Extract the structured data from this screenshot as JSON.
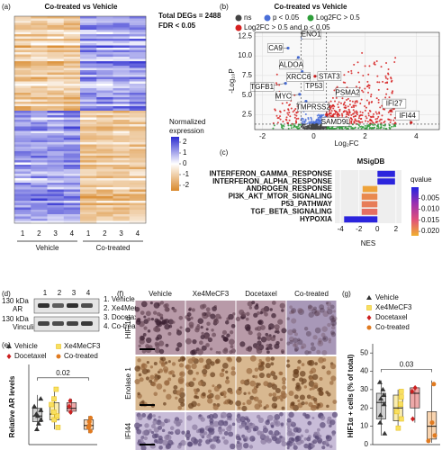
{
  "panels": {
    "a": {
      "label": "(a)",
      "title": "Co-treated vs Vehicle",
      "total_degs": "Total DEGs = 2488",
      "fdr": "FDR < 0.05",
      "colorbar_title": [
        "Normalized",
        "expression"
      ],
      "colorbar_lim": [
        -2.5,
        2.5
      ],
      "colorbar_ticks": [
        2,
        1,
        0,
        -1,
        -2
      ],
      "samples": [
        "1",
        "2",
        "3",
        "4",
        "1",
        "2",
        "3",
        "4"
      ],
      "groups": [
        "Vehicle",
        "Co-treated"
      ]
    },
    "b": {
      "label": "(b)",
      "title": "Co-treated vs Vehicle",
      "legend": [
        {
          "name": "ns",
          "color": "#444444"
        },
        {
          "name": "p < 0.05",
          "color": "#4a6fd8"
        },
        {
          "name": "Log2FC > 0.5",
          "color": "#2e9e3a"
        },
        {
          "name": "Log2FC > 0.5 and p < 0.05",
          "color": "#d62020"
        }
      ],
      "xlabel": "Log₂FC",
      "ylabel": "-Log₁₀P",
      "xlim": [
        -2.3,
        4.9
      ],
      "ylim": [
        0.6,
        13.0
      ],
      "xticks": [
        -2,
        0,
        2,
        4
      ],
      "yticks": [
        2.5,
        {
          "value": 5,
          "label": "5.0"
        },
        7.5,
        {
          "value": 10,
          "label": "10.0"
        },
        12.5
      ],
      "thresholds": {
        "x": [
          -0.5,
          0.5
        ],
        "y": 1.3
      },
      "genes": [
        {
          "name": "ENO1",
          "x": -0.45,
          "y": 12.3
        },
        {
          "name": "CA9",
          "x": -1.0,
          "y": 11.0
        },
        {
          "name": "ALDOA",
          "x": -0.6,
          "y": 9.8
        },
        {
          "name": "XRCC6",
          "x": -0.45,
          "y": 8.0
        },
        {
          "name": "STAT3",
          "x": 0.05,
          "y": 7.4
        },
        {
          "name": "TGFB1",
          "x": -1.1,
          "y": 6.5
        },
        {
          "name": "TP53",
          "x": -0.2,
          "y": 6.4
        },
        {
          "name": "MYC",
          "x": -0.55,
          "y": 5.1
        },
        {
          "name": "TMPRSS2",
          "x": -0.3,
          "y": 4.2
        },
        {
          "name": "PSMA2",
          "x": 0.9,
          "y": 5.8
        },
        {
          "name": "SAMD9L",
          "x": 0.5,
          "y": 2.5
        },
        {
          "name": "IFI27",
          "x": 3.0,
          "y": 3.0
        },
        {
          "name": "IFI44",
          "x": 3.8,
          "y": 1.5
        }
      ]
    },
    "c": {
      "label": "(c)",
      "title": "MSigDB",
      "type": "bar",
      "categories": [
        "INTERFERON_GAMMA_RESPONSE",
        "INTERFERON_ALPHA_RESPONSE",
        "ANDROGEN_RESPONSE",
        "PI3K_AKT_MTOR_SIGNALING",
        "P53_PATHWAY",
        "TGF_BETA_SIGNALING",
        "HYPOXIA"
      ],
      "values": [
        1.9,
        1.9,
        -1.6,
        -1.7,
        -1.7,
        -1.7,
        -3.6
      ],
      "qvalues": [
        0.0005,
        0.0005,
        0.021,
        0.019,
        0.018,
        0.017,
        0.0005
      ],
      "xlabel": "NES",
      "xlim": [
        -4.6,
        2.6
      ],
      "xticks": [
        -4,
        -2,
        0,
        2
      ],
      "colorbar_title": "qvalue",
      "colorbar_lim": [
        0,
        0.022
      ],
      "colorbar_colors": [
        "#2323e0",
        "#9a2fb0",
        "#e0507a",
        "#f0b030"
      ],
      "colorbar_ticks": [
        0.005,
        {
          "value": 0.01,
          "label": "0.010"
        },
        0.015,
        {
          "value": 0.02,
          "label": "0.020"
        }
      ]
    },
    "d": {
      "label": "(d)",
      "rows": [
        {
          "kda": "130 kDa",
          "protein": "AR"
        },
        {
          "kda": "130 kDa",
          "protein": "Vinculin"
        }
      ],
      "lanes": [
        "1",
        "2",
        "3",
        "4"
      ],
      "legend": [
        "1. Vehicle",
        "2. Xe4MeCF3",
        "3. Docetaxel",
        "4. Co-treated"
      ]
    },
    "e": {
      "label": "(e)",
      "legend": [
        {
          "name": "Vehicle",
          "color": "#333333",
          "box": "#9a9a9a",
          "marker": "triangle"
        },
        {
          "name": "Xe4MeCF3",
          "color": "#e8c020",
          "box": "#f3d84a",
          "marker": "square"
        },
        {
          "name": "Docetaxel",
          "color": "#cc2020",
          "box": "#d84040",
          "marker": "diamond"
        },
        {
          "name": "Co-treated",
          "color": "#e07a20",
          "box": "#f0a050",
          "marker": "circle"
        }
      ],
      "ylabel": "Relative AR levels",
      "ylim": [
        0,
        4.2
      ],
      "groups": [
        {
          "min": 0.7,
          "q1": 1.2,
          "median": 1.5,
          "q3": 1.9,
          "max": 2.6,
          "points": [
            0.8,
            1.1,
            1.3,
            1.5,
            1.6,
            1.8,
            2.0,
            2.4
          ]
        },
        {
          "min": 0.8,
          "q1": 1.3,
          "median": 1.6,
          "q3": 2.2,
          "max": 3.0,
          "points": [
            0.9,
            1.3,
            1.5,
            1.7,
            2.1,
            2.4,
            2.9
          ]
        },
        {
          "min": 1.6,
          "q1": 1.75,
          "median": 1.9,
          "q3": 2.2,
          "max": 2.4,
          "points": [
            1.7,
            2.0,
            2.3
          ]
        },
        {
          "min": 0.6,
          "q1": 0.8,
          "median": 1.0,
          "q3": 1.3,
          "max": 1.5,
          "points": [
            0.7,
            0.9,
            1.0,
            1.2,
            1.4
          ]
        }
      ],
      "pvalue": "0.02",
      "pvalue_y": 3.5
    },
    "f": {
      "label": "(f)",
      "columns": [
        "Vehicle",
        "Xe4MeCF3",
        "Docetaxel",
        "Co-treated"
      ],
      "rows": [
        "HIF-1α",
        "Enolase 1",
        "IFI44"
      ]
    },
    "g": {
      "label": "(g)",
      "ylabel": "HIF1α + cells (% of total)",
      "ylim": [
        0,
        55
      ],
      "yticks": [
        0,
        10,
        20,
        30,
        40,
        50
      ],
      "groups": [
        {
          "min": 5,
          "q1": 14,
          "median": 23,
          "q3": 28,
          "max": 35,
          "points": [
            6,
            12,
            16,
            22,
            25,
            27,
            30,
            34
          ]
        },
        {
          "min": 8,
          "q1": 13,
          "median": 20,
          "q3": 27,
          "max": 30,
          "points": [
            9,
            14,
            18,
            22,
            26,
            29
          ]
        },
        {
          "min": 12,
          "q1": 20,
          "median": 28,
          "q3": 31,
          "max": 31,
          "points": [
            14,
            29,
            31
          ]
        },
        {
          "min": 1,
          "q1": 3,
          "median": 10,
          "q3": 18,
          "max": 35,
          "points": [
            2,
            5,
            12,
            33
          ]
        }
      ],
      "pvalue": "0.03",
      "pvalue_y": 41
    }
  }
}
